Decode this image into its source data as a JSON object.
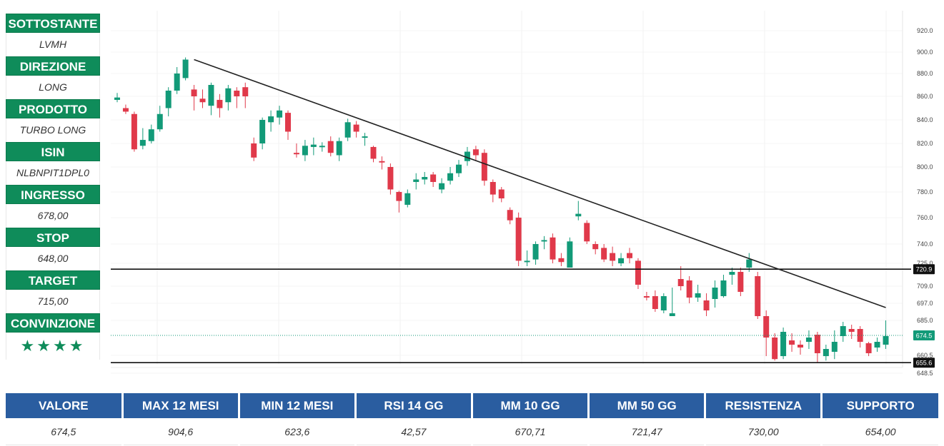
{
  "sidebar": {
    "items": [
      {
        "label": "SOTTOSTANTE",
        "value": "LVMH"
      },
      {
        "label": "DIREZIONE",
        "value": "LONG"
      },
      {
        "label": "PRODOTTO",
        "value": "TURBO LONG"
      },
      {
        "label": "ISIN",
        "value": "NLBNPIT1DPL0"
      },
      {
        "label": "INGRESSO",
        "value": "678,00"
      },
      {
        "label": "STOP",
        "value": "648,00"
      },
      {
        "label": "TARGET",
        "value": "715,00"
      },
      {
        "label": "CONVINZIONE",
        "value": "★★★★"
      }
    ]
  },
  "colors": {
    "label_bg": "#0f8c5a",
    "header_bg": "#2a5da0",
    "up": "#129a78",
    "down": "#e0394a"
  },
  "chart_data": {
    "type": "candlestick",
    "y_axis_ticks": [
      "920.0",
      "900.0",
      "880.0",
      "860.0",
      "840.0",
      "820.0",
      "800.0",
      "780.0",
      "760.0",
      "740.0",
      "725.0",
      "709.0",
      "697.0",
      "685.0",
      "660.5",
      "648.5"
    ],
    "price_tags": [
      {
        "value": 720.9,
        "label": "720.9",
        "style": "dark"
      },
      {
        "value": 674.5,
        "label": "674.5",
        "style": "green"
      },
      {
        "value": 655.6,
        "label": "655.6",
        "style": "dark"
      }
    ],
    "horizontal_lines": [
      720.9,
      655.6
    ],
    "current_price": 674.5,
    "trendline": {
      "from_candle": 9,
      "from_value": 893,
      "to_candle": 90,
      "to_value": 694
    },
    "candles": [
      [
        857,
        859,
        863,
        855
      ],
      [
        850,
        847,
        853,
        845
      ],
      [
        845,
        815,
        847,
        813
      ],
      [
        818,
        823,
        833,
        815
      ],
      [
        822,
        832,
        836,
        820
      ],
      [
        832,
        845,
        852,
        830
      ],
      [
        850,
        865,
        868,
        843
      ],
      [
        865,
        880,
        886,
        862
      ],
      [
        876,
        893,
        895,
        874
      ],
      [
        866,
        860,
        870,
        848
      ],
      [
        858,
        855,
        866,
        850
      ],
      [
        852,
        870,
        872,
        844
      ],
      [
        857,
        850,
        862,
        842
      ],
      [
        855,
        867,
        870,
        848
      ],
      [
        865,
        860,
        868,
        850
      ],
      [
        868,
        860,
        872,
        850
      ],
      [
        820,
        808,
        825,
        805
      ],
      [
        820,
        840,
        842,
        815
      ],
      [
        838,
        843,
        848,
        830
      ],
      [
        842,
        848,
        852,
        836
      ],
      [
        846,
        830,
        848,
        823
      ],
      [
        812,
        811,
        820,
        808
      ],
      [
        810,
        818,
        823,
        805
      ],
      [
        817,
        819,
        825,
        810
      ],
      [
        818,
        818,
        821,
        813
      ],
      [
        822,
        812,
        826,
        809
      ],
      [
        810,
        822,
        825,
        805
      ],
      [
        825,
        838,
        841,
        822
      ],
      [
        836,
        830,
        839,
        825
      ],
      [
        826,
        826,
        829,
        818
      ],
      [
        817,
        807,
        818,
        804
      ],
      [
        805,
        804,
        809,
        798
      ],
      [
        800,
        782,
        803,
        778
      ],
      [
        780,
        773,
        781,
        764
      ],
      [
        770,
        779,
        782,
        768
      ],
      [
        788,
        790,
        795,
        782
      ],
      [
        790,
        792,
        796,
        786
      ],
      [
        794,
        788,
        796,
        784
      ],
      [
        782,
        787,
        791,
        779
      ],
      [
        789,
        795,
        800,
        786
      ],
      [
        795,
        802,
        806,
        792
      ],
      [
        805,
        813,
        817,
        801
      ],
      [
        815,
        810,
        818,
        805
      ],
      [
        812,
        789,
        815,
        785
      ],
      [
        788,
        778,
        790,
        772
      ],
      [
        782,
        775,
        784,
        772
      ],
      [
        766,
        758,
        768,
        755
      ],
      [
        760,
        727,
        764,
        723
      ],
      [
        727,
        727,
        735,
        723
      ],
      [
        728,
        740,
        742,
        724
      ],
      [
        743,
        743,
        746,
        736
      ],
      [
        745,
        728,
        748,
        725
      ],
      [
        729,
        726,
        733,
        723
      ],
      [
        722,
        742,
        745,
        722
      ],
      [
        761,
        763,
        773,
        758
      ],
      [
        756,
        742,
        758,
        740
      ],
      [
        740,
        736,
        742,
        732
      ],
      [
        737,
        728,
        740,
        726
      ],
      [
        733,
        727,
        738,
        723
      ],
      [
        725,
        729,
        733,
        723
      ],
      [
        733,
        729,
        737,
        725
      ],
      [
        727,
        710,
        729,
        707
      ],
      [
        702,
        701,
        705,
        699
      ],
      [
        702,
        693,
        706,
        691
      ],
      [
        692,
        702,
        704,
        690
      ],
      [
        688,
        690,
        708,
        688
      ],
      [
        714,
        709,
        723,
        706
      ],
      [
        713,
        701,
        716,
        697
      ],
      [
        701,
        704,
        710,
        698
      ],
      [
        699,
        692,
        704,
        688
      ],
      [
        700,
        708,
        713,
        694
      ],
      [
        702,
        713,
        717,
        701
      ],
      [
        717,
        719,
        722,
        710
      ],
      [
        719,
        705,
        722,
        702
      ],
      [
        722,
        728,
        733,
        719
      ],
      [
        716,
        688,
        719,
        686
      ],
      [
        688,
        673,
        692,
        660
      ],
      [
        673,
        658,
        676,
        657
      ],
      [
        660,
        677,
        680,
        658
      ],
      [
        671,
        668,
        676,
        663
      ],
      [
        668,
        666,
        671,
        661
      ],
      [
        670,
        673,
        678,
        665
      ],
      [
        675,
        662,
        677,
        656
      ],
      [
        660,
        665,
        668,
        657
      ],
      [
        663,
        670,
        678,
        658
      ],
      [
        674,
        681,
        684,
        670
      ],
      [
        679,
        677,
        682,
        672
      ],
      [
        679,
        670,
        681,
        666
      ],
      [
        669,
        662,
        670,
        660
      ],
      [
        666,
        670,
        673,
        663
      ],
      [
        668,
        674,
        685,
        665
      ]
    ]
  },
  "table": {
    "headers": [
      "VALORE",
      "MAX 12 MESI",
      "MIN 12 MESI",
      "RSI 14 GG",
      "MM 10 GG",
      "MM 50 GG",
      "RESISTENZA",
      "SUPPORTO"
    ],
    "values": [
      "674,5",
      "904,6",
      "623,6",
      "42,57",
      "670,71",
      "721,47",
      "730,00",
      "654,00"
    ]
  }
}
